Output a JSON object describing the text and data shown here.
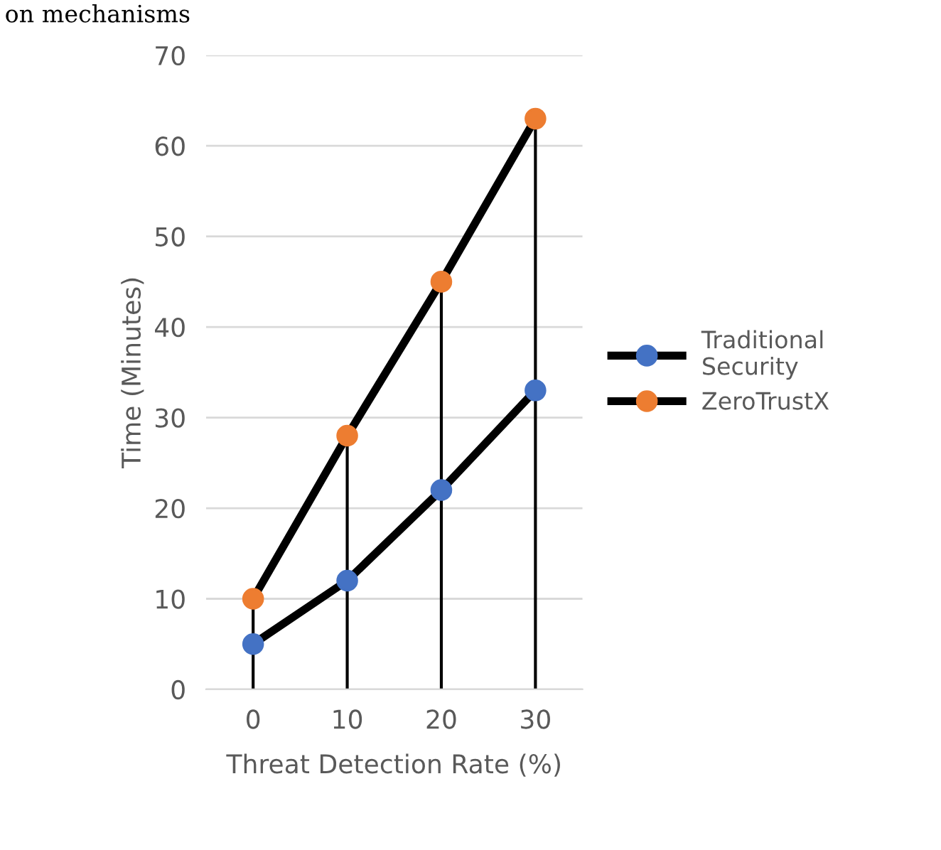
{
  "chart_data": {
    "type": "line",
    "xlabel": "Threat Detection Rate (%)",
    "ylabel": "Time (Minutes)",
    "annotations": [
      "on mechanisms"
    ],
    "categories": [
      "0",
      "10",
      "20",
      "30"
    ],
    "series": [
      {
        "name": "Traditional Security",
        "color": "#4472c4",
        "values": [
          5,
          12,
          22,
          33
        ]
      },
      {
        "name": "ZeroTrustX",
        "color": "#ed7d31",
        "values": [
          10,
          28,
          45,
          63
        ],
        "errors": [
          [
            10,
            0
          ],
          [
            28,
            0
          ],
          [
            45,
            0
          ],
          [
            63,
            0
          ]
        ]
      }
    ],
    "ylim": [
      0,
      70
    ],
    "yticks": [
      0,
      10,
      20,
      30,
      40,
      50,
      60,
      70
    ],
    "grid": "y",
    "legend": "right",
    "marker": "circle",
    "line_style": "solid"
  }
}
